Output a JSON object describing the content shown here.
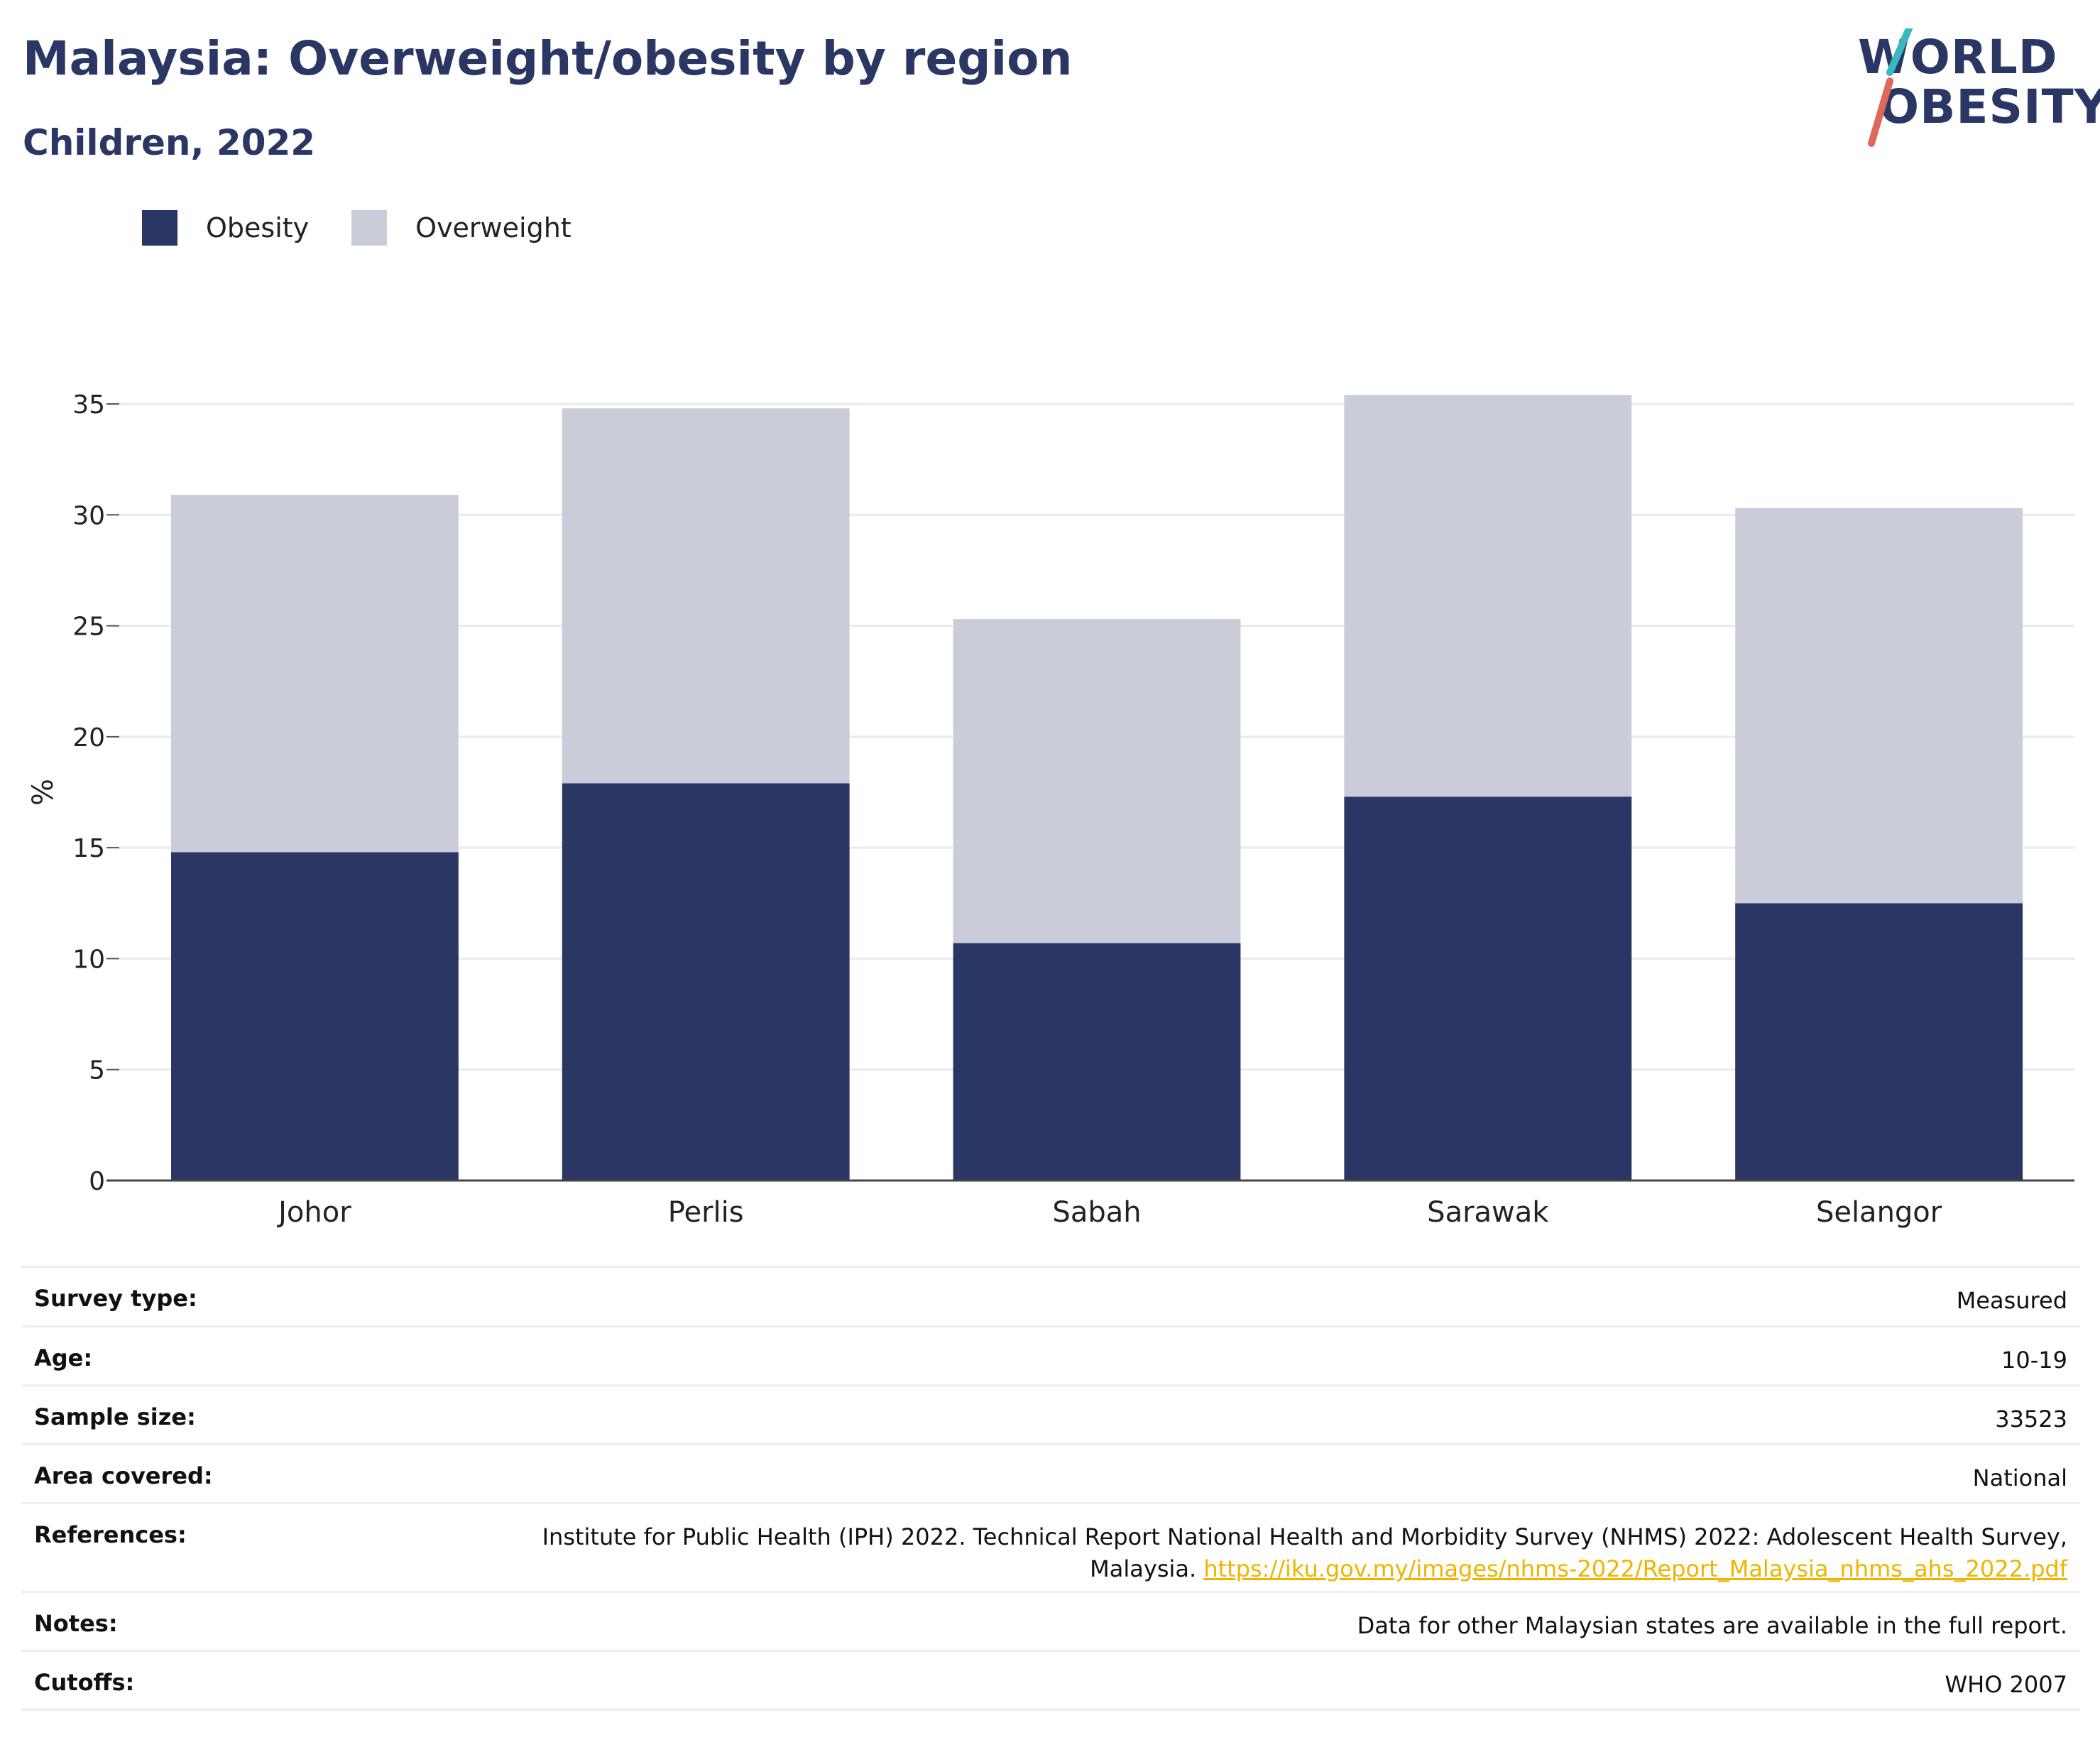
{
  "header": {
    "title": "Malaysia: Overweight/obesity by region",
    "subtitle": "Children, 2022"
  },
  "logo": {
    "line1": "WORLD",
    "line2": "OBESITY",
    "accent_colors": [
      "#3ab8c0",
      "#e0685a"
    ]
  },
  "legend": {
    "items": [
      {
        "label": "Obesity",
        "color": "#2a3663"
      },
      {
        "label": "Overweight",
        "color": "#cacccf"
      }
    ]
  },
  "chart_data": {
    "type": "bar",
    "stacked": true,
    "categories": [
      "Johor",
      "Perlis",
      "Sabah",
      "Sarawak",
      "Selangor"
    ],
    "series": [
      {
        "name": "Obesity",
        "values": [
          14.8,
          17.9,
          10.7,
          17.3,
          12.5
        ],
        "color": "#2a3663"
      },
      {
        "name": "Overweight",
        "values": [
          16.1,
          16.9,
          14.6,
          18.1,
          17.8
        ],
        "color": "#cacdd9"
      }
    ],
    "ylabel": "%",
    "xlabel": "",
    "ylim": [
      0,
      35
    ],
    "yticks": [
      0,
      5,
      10,
      15,
      20,
      25,
      30,
      35
    ],
    "grid": true
  },
  "info": {
    "survey_type": {
      "label": "Survey type:",
      "value": "Measured"
    },
    "age": {
      "label": "Age:",
      "value": "10-19"
    },
    "sample_size": {
      "label": "Sample size:",
      "value": "33523"
    },
    "area_covered": {
      "label": "Area covered:",
      "value": "National"
    },
    "references": {
      "label": "References:",
      "line1": "Institute for Public Health (IPH) 2022. Technical Report National Health and Morbidity Survey (NHMS) 2022: Adolescent Health Survey,",
      "line2": "Malaysia.",
      "link": "https://iku.gov.my/images/nhms-2022/Report_Malaysia_nhms_ahs_2022.pdf",
      "link_color": "#f0b400"
    },
    "notes": {
      "label": "Notes:",
      "value": "Data for other Malaysian states are available in the full report."
    },
    "cutoffs": {
      "label": "Cutoffs:",
      "value": "WHO 2007"
    }
  }
}
